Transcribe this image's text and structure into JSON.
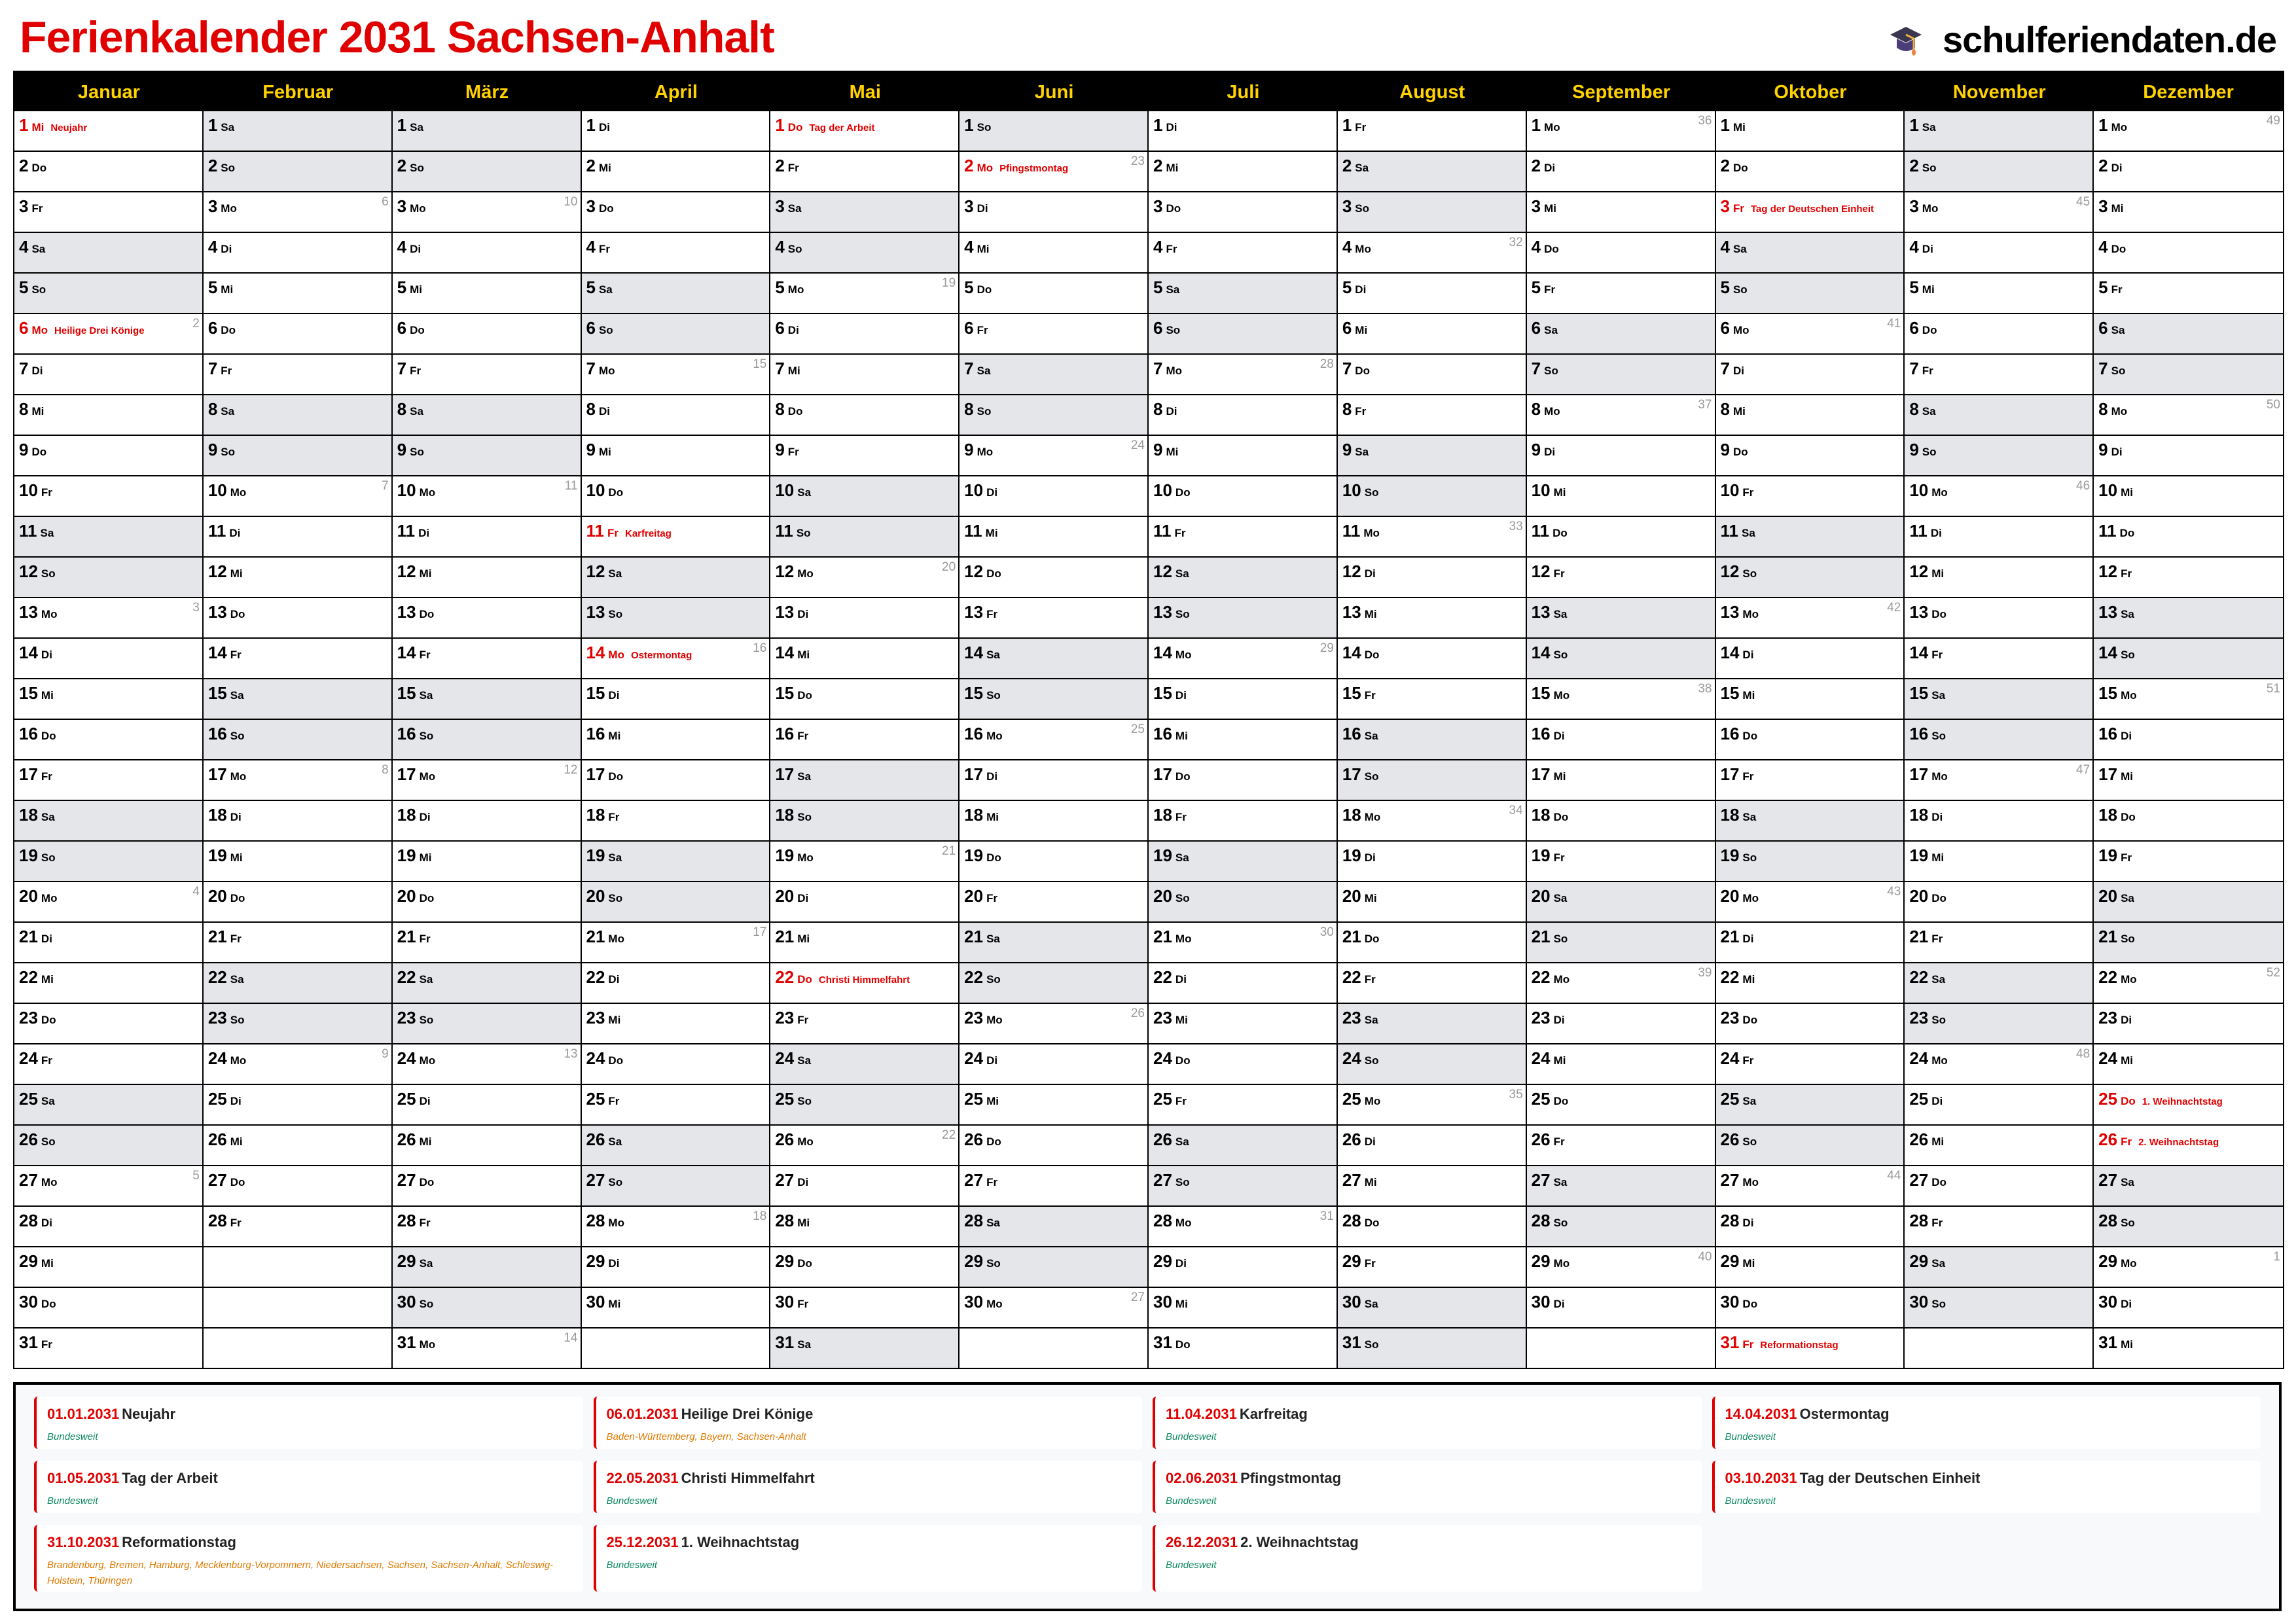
{
  "title": "Ferienkalender 2031 Sachsen-Anhalt",
  "brand": {
    "name": "schulferiendaten.de",
    "icon": "graduation-cap-icon"
  },
  "colors": {
    "accent": "#e00000",
    "month_header": "#ffd200",
    "weekend": "#e5e6ea",
    "nationwide": "#0e8a5f",
    "regional": "#e07a00"
  },
  "months": [
    {
      "name": "Januar",
      "weekdays": "Mi Do Fr Sa So Mo Di Mi Do Fr Sa So Mo Di Mi Do Fr Sa So Mo Di Mi Do Fr Sa So Mo Di Mi Do Fr",
      "holidays": {
        "1": "Neujahr",
        "6": "Heilige Drei Könige"
      },
      "week_numbers": {
        "6": "2",
        "13": "3",
        "20": "4",
        "27": "5"
      }
    },
    {
      "name": "Februar",
      "weekdays": "Sa So Mo Di Mi Do Fr Sa So Mo Di Mi Do Fr Sa So Mo Di Mi Do Fr Sa So Mo Di Mi Do Fr",
      "holidays": {},
      "week_numbers": {
        "3": "6",
        "10": "7",
        "17": "8",
        "24": "9"
      }
    },
    {
      "name": "März",
      "weekdays": "Sa So Mo Di Mi Do Fr Sa So Mo Di Mi Do Fr Sa So Mo Di Mi Do Fr Sa So Mo Di Mi Do Fr Sa So Mo",
      "holidays": {},
      "week_numbers": {
        "3": "10",
        "10": "11",
        "17": "12",
        "24": "13",
        "31": "14"
      }
    },
    {
      "name": "April",
      "weekdays": "Di Mi Do Fr Sa So Mo Di Mi Do Fr Sa So Mo Di Mi Do Fr Sa So Mo Di Mi Do Fr Sa So Mo Di Mi",
      "holidays": {
        "11": "Karfreitag",
        "14": "Ostermontag"
      },
      "week_numbers": {
        "7": "15",
        "14": "16",
        "21": "17",
        "28": "18"
      }
    },
    {
      "name": "Mai",
      "weekdays": "Do Fr Sa So Mo Di Mi Do Fr Sa So Mo Di Mi Do Fr Sa So Mo Di Mi Do Fr Sa So Mo Di Mi Do Fr Sa",
      "holidays": {
        "1": "Tag der Arbeit",
        "22": "Christi Himmelfahrt"
      },
      "week_numbers": {
        "5": "19",
        "12": "20",
        "19": "21",
        "26": "22"
      }
    },
    {
      "name": "Juni",
      "weekdays": "So Mo Di Mi Do Fr Sa So Mo Di Mi Do Fr Sa So Mo Di Mi Do Fr Sa So Mo Di Mi Do Fr Sa So Mo",
      "holidays": {
        "2": "Pfingstmontag"
      },
      "week_numbers": {
        "2": "23",
        "9": "24",
        "16": "25",
        "23": "26",
        "30": "27"
      }
    },
    {
      "name": "Juli",
      "weekdays": "Di Mi Do Fr Sa So Mo Di Mi Do Fr Sa So Mo Di Mi Do Fr Sa So Mo Di Mi Do Fr Sa So Mo Di Mi Do",
      "holidays": {},
      "week_numbers": {
        "7": "28",
        "14": "29",
        "21": "30",
        "28": "31"
      }
    },
    {
      "name": "August",
      "weekdays": "Fr Sa So Mo Di Mi Do Fr Sa So Mo Di Mi Do Fr Sa So Mo Di Mi Do Fr Sa So Mo Di Mi Do Fr Sa So",
      "holidays": {},
      "week_numbers": {
        "4": "32",
        "11": "33",
        "18": "34",
        "25": "35"
      }
    },
    {
      "name": "September",
      "weekdays": "Mo Di Mi Do Fr Sa So Mo Di Mi Do Fr Sa So Mo Di Mi Do Fr Sa So Mo Di Mi Do Fr Sa So Mo Di",
      "holidays": {},
      "week_numbers": {
        "1": "36",
        "8": "37",
        "15": "38",
        "22": "39",
        "29": "40"
      }
    },
    {
      "name": "Oktober",
      "weekdays": "Mi Do Fr Sa So Mo Di Mi Do Fr Sa So Mo Di Mi Do Fr Sa So Mo Di Mi Do Fr Sa So Mo Di Mi Do Fr",
      "holidays": {
        "3": "Tag der Deutschen Einheit",
        "31": "Reformationstag"
      },
      "week_numbers": {
        "6": "41",
        "13": "42",
        "20": "43",
        "27": "44"
      }
    },
    {
      "name": "November",
      "weekdays": "Sa So Mo Di Mi Do Fr Sa So Mo Di Mi Do Fr Sa So Mo Di Mi Do Fr Sa So Mo Di Mi Do Fr Sa So",
      "holidays": {},
      "week_numbers": {
        "3": "45",
        "10": "46",
        "17": "47",
        "24": "48"
      }
    },
    {
      "name": "Dezember",
      "weekdays": "Mo Di Mi Do Fr Sa So Mo Di Mi Do Fr Sa So Mo Di Mi Do Fr Sa So Mo Di Mi Do Fr Sa So Mo Di Mi",
      "holidays": {
        "25": "1. Weihnachtstag",
        "26": "2. Weihnachtstag"
      },
      "week_numbers": {
        "1": "49",
        "8": "50",
        "15": "51",
        "22": "52",
        "29": "1"
      }
    }
  ],
  "legend": [
    {
      "date": "01.01.2031",
      "name": "Neujahr",
      "regions": "Bundesweit",
      "nationwide": true
    },
    {
      "date": "06.01.2031",
      "name": "Heilige Drei Könige",
      "regions": "Baden-Württemberg, Bayern, Sachsen-Anhalt",
      "nationwide": false
    },
    {
      "date": "11.04.2031",
      "name": "Karfreitag",
      "regions": "Bundesweit",
      "nationwide": true
    },
    {
      "date": "14.04.2031",
      "name": "Ostermontag",
      "regions": "Bundesweit",
      "nationwide": true
    },
    {
      "date": "01.05.2031",
      "name": "Tag der Arbeit",
      "regions": "Bundesweit",
      "nationwide": true
    },
    {
      "date": "22.05.2031",
      "name": "Christi Himmelfahrt",
      "regions": "Bundesweit",
      "nationwide": true
    },
    {
      "date": "02.06.2031",
      "name": "Pfingstmontag",
      "regions": "Bundesweit",
      "nationwide": true
    },
    {
      "date": "03.10.2031",
      "name": "Tag der Deutschen Einheit",
      "regions": "Bundesweit",
      "nationwide": true
    },
    {
      "date": "31.10.2031",
      "name": "Reformationstag",
      "regions": "Brandenburg, Bremen, Hamburg, Mecklenburg-Vorpommern, Niedersachsen, Sachsen, Sachsen-Anhalt, Schleswig-Holstein, Thüringen",
      "nationwide": false
    },
    {
      "date": "25.12.2031",
      "name": "1. Weihnachtstag",
      "regions": "Bundesweit",
      "nationwide": true
    },
    {
      "date": "26.12.2031",
      "name": "2. Weihnachtstag",
      "regions": "Bundesweit",
      "nationwide": true
    }
  ]
}
